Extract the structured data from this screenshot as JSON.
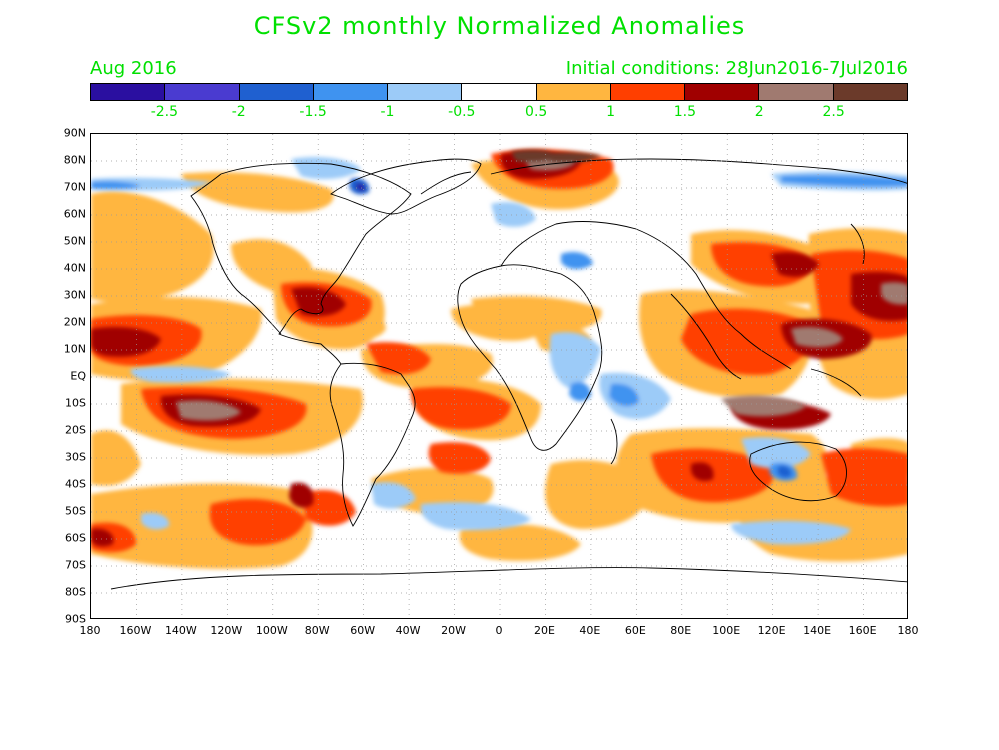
{
  "title": "CFSv2 monthly Normalized Anomalies",
  "month_label": "Aug 2016",
  "init_label": "Initial conditions: 28Jun2016-7Jul2016",
  "colorbar": {
    "colors": [
      "#2a0fa0",
      "#4a3bd0",
      "#1f60d0",
      "#3f93f0",
      "#9ccbf8",
      "#ffffff",
      "#ffb640",
      "#ff3f00",
      "#a00000",
      "#a07a70",
      "#6b3a2a"
    ],
    "labels": [
      "-2.5",
      "-2",
      "-1.5",
      "-1",
      "-0.5",
      "0.5",
      "1",
      "1.5",
      "2",
      "2.5"
    ]
  },
  "lat_labels": [
    "90N",
    "80N",
    "70N",
    "60N",
    "50N",
    "40N",
    "30N",
    "20N",
    "10N",
    "EQ",
    "10S",
    "20S",
    "30S",
    "40S",
    "50S",
    "60S",
    "70S",
    "80S",
    "90S"
  ],
  "lon_labels": [
    "180",
    "160W",
    "140W",
    "120W",
    "100W",
    "80W",
    "60W",
    "40W",
    "20W",
    "0",
    "20E",
    "40E",
    "60E",
    "80E",
    "100E",
    "120E",
    "140E",
    "160E",
    "180"
  ]
}
